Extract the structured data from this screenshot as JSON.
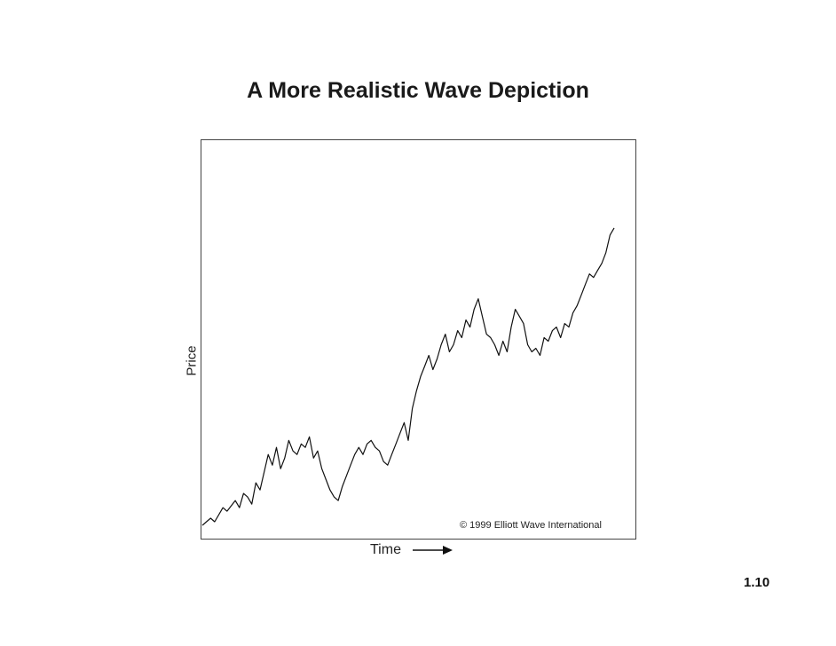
{
  "slide": {
    "title": "A More Realistic Wave Depiction",
    "page_number": "1.10",
    "copyright": "© 1999 Elliott Wave International"
  },
  "chart_data": {
    "type": "line",
    "title": "A More Realistic Wave Depiction",
    "xlabel": "Time",
    "ylabel": "Price",
    "grid": false,
    "legend": "none",
    "x_ticks": "none",
    "y_ticks": "none",
    "line_color": "#111111",
    "xlim": [
      0,
      100
    ],
    "ylim": [
      0,
      100
    ],
    "series": [
      {
        "x": [
          0,
          2,
          3,
          5,
          6,
          8,
          9,
          10,
          11,
          12,
          13,
          14,
          15,
          16,
          17,
          18,
          19,
          20,
          21,
          22,
          23,
          24,
          25,
          26,
          27,
          28,
          29,
          30,
          31,
          32,
          33,
          34,
          35,
          36,
          37,
          38,
          39,
          40,
          41,
          42,
          43,
          44,
          45,
          46,
          47,
          48,
          49,
          50,
          51,
          52,
          53,
          54,
          55,
          56,
          57,
          58,
          59,
          60,
          61,
          62,
          63,
          64,
          65,
          66,
          67,
          68,
          69,
          70,
          71,
          72,
          73,
          74,
          75,
          76,
          77,
          78,
          79,
          80,
          81,
          82,
          83,
          84,
          85,
          86,
          87,
          88,
          89,
          90,
          91,
          92,
          93,
          94,
          95,
          96,
          97,
          98,
          99,
          100
        ],
        "y": [
          2,
          4,
          3,
          7,
          6,
          9,
          7,
          11,
          10,
          8,
          14,
          12,
          17,
          22,
          19,
          24,
          18,
          21,
          26,
          23,
          22,
          25,
          24,
          27,
          21,
          23,
          18,
          15,
          12,
          10,
          9,
          13,
          16,
          19,
          22,
          24,
          22,
          25,
          26,
          24,
          23,
          20,
          19,
          22,
          25,
          28,
          31,
          26,
          35,
          40,
          44,
          47,
          50,
          46,
          49,
          53,
          56,
          51,
          53,
          57,
          55,
          60,
          58,
          63,
          66,
          61,
          56,
          55,
          53,
          50,
          54,
          51,
          58,
          63,
          61,
          59,
          53,
          51,
          52,
          50,
          55,
          54,
          57,
          58,
          55,
          59,
          58,
          62,
          64,
          67,
          70,
          73,
          72,
          74,
          76,
          79,
          84,
          86
        ]
      }
    ]
  }
}
